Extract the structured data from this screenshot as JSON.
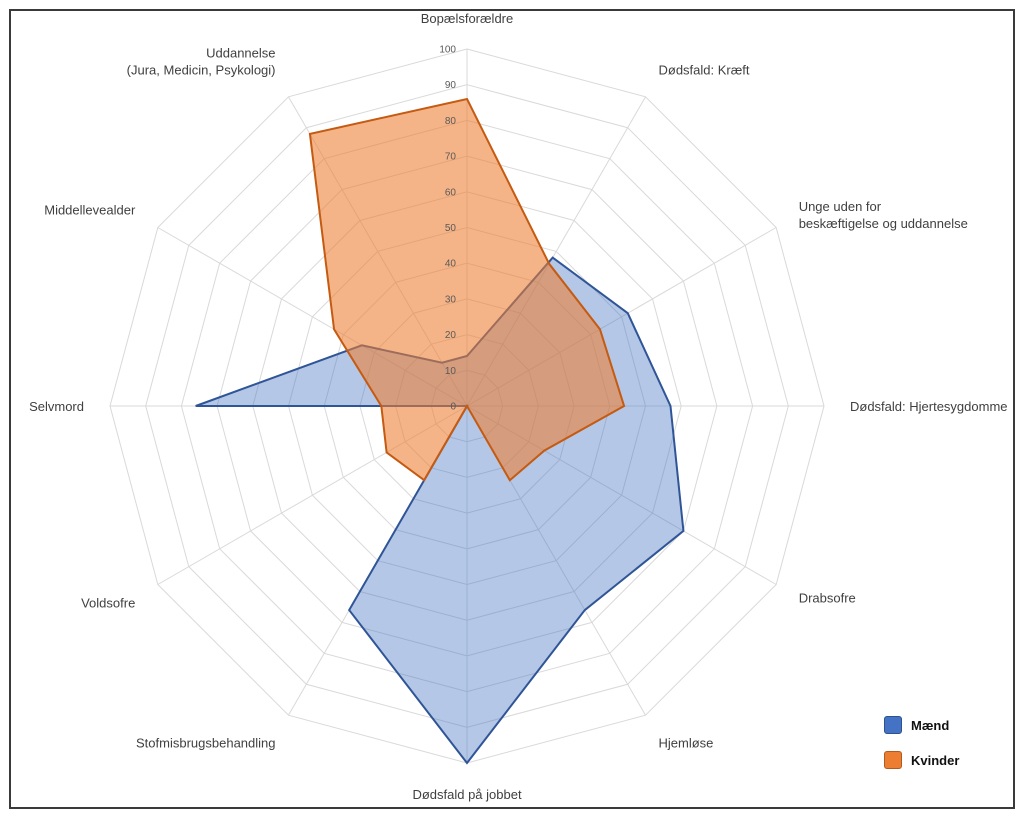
{
  "chart_data": {
    "type": "radar",
    "title": "",
    "categories": [
      "Bopælsforældre",
      "Dødsfald: Kræft",
      "Unge uden for\nbeskæftigelse og uddannelse",
      "Dødsfald: Hjertesygdomme",
      "Drabsofre",
      "Hjemløse",
      "Dødsfald på jobbet",
      "Stofmisbrugsbehandling",
      "Voldsofre",
      "Selvmord",
      "Middellevealder",
      "Uddannelse\n(Jura, Medicin, Psykologi)"
    ],
    "ticks": [
      "0",
      "10",
      "20",
      "30",
      "40",
      "50",
      "60",
      "70",
      "80",
      "90",
      "100"
    ],
    "rlim": [
      0,
      100
    ],
    "grid": true,
    "legend_position": "bottom-right",
    "series": [
      {
        "name": "Mænd",
        "color": "#4472C4",
        "values": [
          14,
          48,
          52,
          57,
          70,
          66,
          100,
          66,
          0,
          76,
          34,
          14
        ]
      },
      {
        "name": "Kvinder",
        "color": "#ED7D31",
        "values": [
          86,
          46,
          43,
          44,
          25,
          24,
          0,
          24,
          26,
          24,
          43,
          88
        ]
      }
    ]
  }
}
